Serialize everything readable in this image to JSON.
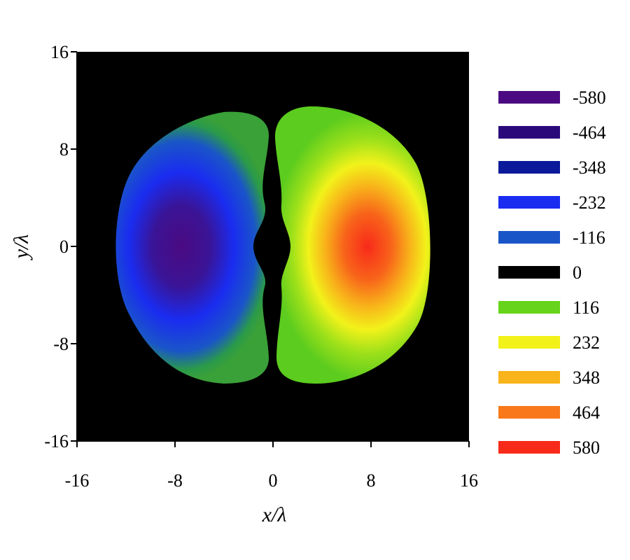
{
  "chart_data": {
    "type": "heatmap",
    "title": "",
    "xlabel": "x/λ",
    "ylabel": "y/λ",
    "xlim": [
      -16,
      16
    ],
    "ylim": [
      -16,
      16
    ],
    "xticks": [
      -16,
      -8,
      0,
      8,
      16
    ],
    "yticks": [
      -16,
      -8,
      0,
      8,
      16
    ],
    "background_color": "#000000",
    "grid": false,
    "legend_position": "right",
    "legend": [
      {
        "label": "-580",
        "value": -580,
        "color": "#4b0a82"
      },
      {
        "label": "-464",
        "value": -464,
        "color": "#2a0a7a"
      },
      {
        "label": "-348",
        "value": -348,
        "color": "#0a1a9a"
      },
      {
        "label": "-232",
        "value": -232,
        "color": "#1a2cf0"
      },
      {
        "label": "-116",
        "value": -116,
        "color": "#1a55c8"
      },
      {
        "label": "0",
        "value": 0,
        "color": "#000000"
      },
      {
        "label": "116",
        "value": 116,
        "color": "#66d41a"
      },
      {
        "label": "232",
        "value": 232,
        "color": "#f2f21a"
      },
      {
        "label": "348",
        "value": 348,
        "color": "#f8b41a"
      },
      {
        "label": "464",
        "value": 464,
        "color": "#f8781a"
      },
      {
        "label": "580",
        "value": 580,
        "color": "#f82a1a"
      }
    ],
    "lobes": [
      {
        "name": "negative lobe",
        "x_range": [
          -13,
          -0.3
        ],
        "y_range": [
          -11,
          11
        ],
        "peak_value": -580,
        "peak_at": [
          -8,
          0
        ],
        "edge_value": -116
      },
      {
        "name": "positive lobe",
        "x_range": [
          0.3,
          13
        ],
        "y_range": [
          -11,
          11
        ],
        "peak_value": 580,
        "peak_at": [
          8,
          0
        ],
        "edge_value": 116
      }
    ]
  }
}
